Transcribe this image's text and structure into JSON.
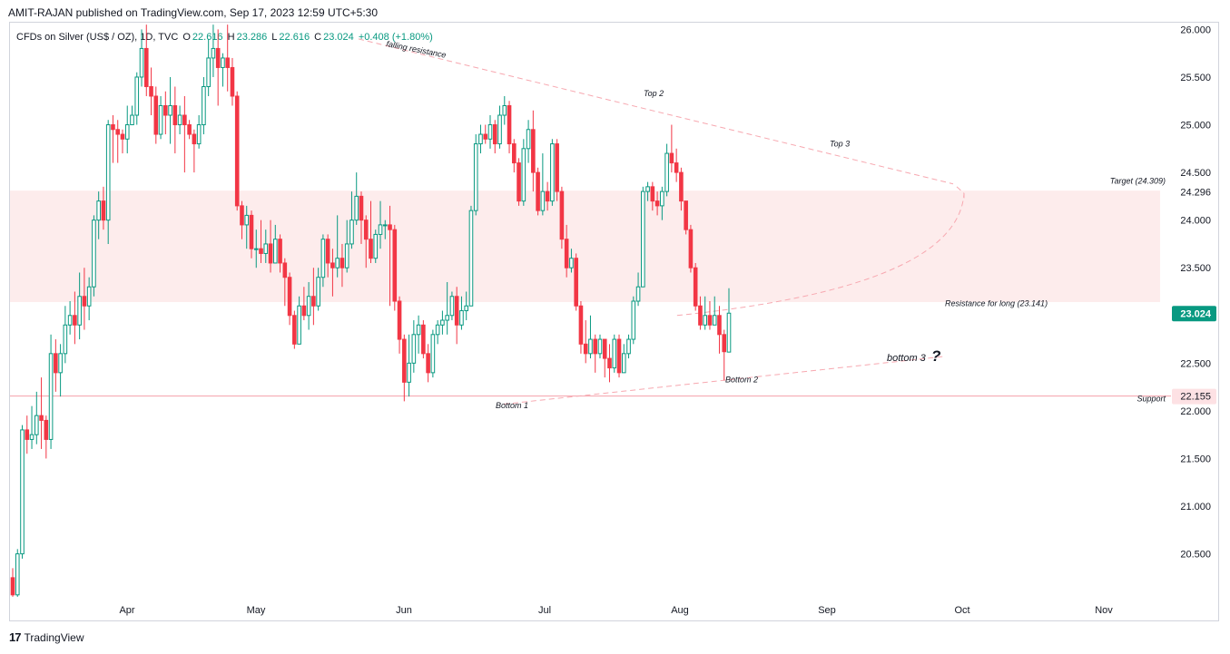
{
  "header": {
    "publisher": "AMIT-RAJAN published on TradingView.com, Sep 17, 2023 12:59 UTC+5:30"
  },
  "legend": {
    "symbol": "CFDs on Silver (US$ / OZ), 1D, TVC",
    "open_label": "O",
    "open": "22.616",
    "high_label": "H",
    "high": "23.286",
    "low_label": "L",
    "low": "22.616",
    "close_label": "C",
    "close": "23.024",
    "change": "+0.408 (+1.80%)"
  },
  "colors": {
    "up": "#089981",
    "down": "#f23645",
    "annotation": "#f7a8b0",
    "zone": "#fdecec"
  },
  "footer": {
    "brand": "TradingView",
    "logo_glyph": "17"
  },
  "chart_data": {
    "type": "candlestick",
    "symbol": "CFDs on Silver (US$ / OZ)",
    "interval": "1D",
    "ylim": [
      20.03,
      26.08
    ],
    "yticks": [
      20.5,
      21.0,
      21.5,
      22.0,
      22.5,
      23.0,
      23.5,
      24.0,
      24.5,
      25.0,
      25.5,
      26.0
    ],
    "ytick_labels": [
      "20.500",
      "21.000",
      "21.500",
      "22.000",
      "22.500",
      "23.000",
      "23.500",
      "24.000",
      "24.500",
      "25.000",
      "25.500",
      "26.000"
    ],
    "xlabels": [
      "Apr",
      "May",
      "Jun",
      "Jul",
      "Aug",
      "Sep",
      "Oct",
      "Nov"
    ],
    "price_tags": [
      {
        "value": 24.296,
        "label": "24.296",
        "style": "plain"
      },
      {
        "value": 23.024,
        "label": "23.024",
        "style": "last"
      },
      {
        "value": 22.155,
        "label": "22.155",
        "style": "support"
      }
    ],
    "zone": {
      "low": 23.141,
      "high": 24.309
    },
    "support_line": 22.155,
    "annotations": [
      {
        "text": "falling resistance",
        "at": "top-left trendline"
      },
      {
        "text": "Top 2",
        "price": 25.3
      },
      {
        "text": "Top 3",
        "price": 24.77
      },
      {
        "text": "Target (24.309)",
        "price": 24.38
      },
      {
        "text": "Resistance for long (23.141)",
        "price": 23.1
      },
      {
        "text": "bottom 3",
        "price": 22.52
      },
      {
        "text": "?",
        "price": 22.52
      },
      {
        "text": "Bottom 2",
        "price": 22.3
      },
      {
        "text": "Bottom 1",
        "price": 22.03
      },
      {
        "text": "Support",
        "price": 22.1
      }
    ],
    "candles": [
      [
        20.25,
        20.07,
        20.35,
        20.05
      ],
      [
        20.07,
        20.5,
        20.55,
        20.05
      ],
      [
        20.5,
        21.8,
        21.85,
        20.45
      ],
      [
        21.8,
        21.7,
        21.95,
        21.55
      ],
      [
        21.7,
        21.75,
        22.05,
        21.6
      ],
      [
        21.75,
        21.95,
        22.2,
        21.65
      ],
      [
        21.95,
        21.9,
        22.35,
        21.6
      ],
      [
        21.9,
        21.7,
        21.95,
        21.5
      ],
      [
        21.7,
        22.6,
        22.8,
        21.6
      ],
      [
        22.6,
        22.4,
        22.75,
        22.2
      ],
      [
        22.4,
        22.6,
        22.7,
        22.15
      ],
      [
        22.6,
        22.9,
        23.1,
        22.5
      ],
      [
        22.9,
        23.0,
        23.15,
        22.8
      ],
      [
        23.0,
        22.9,
        23.25,
        22.7
      ],
      [
        22.9,
        23.2,
        23.45,
        22.75
      ],
      [
        23.2,
        23.1,
        23.5,
        22.85
      ],
      [
        23.1,
        23.3,
        23.4,
        22.95
      ],
      [
        23.3,
        24.0,
        24.05,
        23.2
      ],
      [
        24.0,
        24.2,
        24.3,
        23.8
      ],
      [
        24.2,
        24.0,
        24.35,
        23.9
      ],
      [
        24.0,
        25.0,
        25.05,
        23.75
      ],
      [
        25.0,
        24.95,
        25.1,
        24.6
      ],
      [
        24.95,
        24.9,
        25.05,
        24.6
      ],
      [
        24.9,
        24.85,
        24.95,
        24.7
      ],
      [
        24.85,
        25.0,
        25.2,
        24.7
      ],
      [
        25.0,
        25.1,
        25.2,
        25.0
      ],
      [
        25.1,
        25.5,
        25.55,
        25.0
      ],
      [
        25.5,
        25.8,
        26.0,
        25.4
      ],
      [
        25.8,
        25.4,
        26.05,
        25.3
      ],
      [
        25.4,
        25.3,
        25.6,
        25.1
      ],
      [
        25.3,
        24.9,
        25.4,
        24.8
      ],
      [
        24.9,
        25.2,
        25.3,
        24.85
      ],
      [
        25.2,
        25.1,
        25.35,
        24.9
      ],
      [
        25.1,
        25.2,
        25.5,
        24.8
      ],
      [
        25.2,
        25.0,
        25.4,
        24.7
      ],
      [
        25.0,
        25.1,
        25.2,
        24.9
      ],
      [
        25.1,
        25.0,
        25.3,
        24.5
      ],
      [
        25.0,
        24.9,
        25.05,
        24.85
      ],
      [
        24.9,
        24.8,
        24.95,
        24.5
      ],
      [
        24.8,
        25.0,
        25.1,
        24.75
      ],
      [
        25.0,
        25.4,
        25.5,
        24.9
      ],
      [
        25.4,
        25.7,
        25.9,
        25.3
      ],
      [
        25.7,
        25.8,
        26.05,
        25.5
      ],
      [
        25.8,
        25.6,
        26.0,
        25.2
      ],
      [
        25.6,
        25.7,
        25.75,
        25.4
      ],
      [
        25.7,
        25.6,
        26.05,
        25.35
      ],
      [
        25.6,
        25.3,
        25.7,
        25.2
      ],
      [
        25.3,
        24.15,
        25.35,
        24.1
      ],
      [
        24.15,
        23.95,
        24.2,
        23.8
      ],
      [
        23.95,
        24.05,
        24.15,
        23.7
      ],
      [
        24.05,
        23.7,
        24.1,
        23.6
      ],
      [
        23.7,
        23.7,
        23.9,
        23.5
      ],
      [
        23.7,
        23.65,
        24.0,
        23.55
      ],
      [
        23.65,
        23.75,
        23.9,
        23.55
      ],
      [
        23.75,
        23.55,
        24.0,
        23.45
      ],
      [
        23.55,
        23.8,
        23.95,
        23.6
      ],
      [
        23.8,
        23.55,
        23.85,
        23.45
      ],
      [
        23.55,
        23.4,
        23.6,
        23.1
      ],
      [
        23.4,
        23.0,
        23.45,
        22.9
      ],
      [
        23.0,
        22.7,
        23.05,
        22.65
      ],
      [
        22.7,
        23.1,
        23.2,
        22.7
      ],
      [
        23.1,
        23.0,
        23.3,
        22.95
      ],
      [
        23.0,
        23.2,
        23.35,
        22.85
      ],
      [
        23.2,
        23.1,
        23.5,
        22.9
      ],
      [
        23.1,
        23.4,
        23.5,
        23.05
      ],
      [
        23.4,
        23.8,
        23.85,
        23.3
      ],
      [
        23.8,
        23.55,
        23.85,
        23.4
      ],
      [
        23.55,
        23.5,
        23.7,
        23.2
      ],
      [
        23.5,
        23.6,
        24.05,
        23.4
      ],
      [
        23.6,
        23.5,
        23.75,
        23.3
      ],
      [
        23.5,
        23.75,
        24.0,
        23.45
      ],
      [
        23.75,
        24.0,
        24.3,
        23.7
      ],
      [
        24.0,
        24.25,
        24.5,
        23.95
      ],
      [
        24.25,
        24.0,
        24.3,
        23.75
      ],
      [
        24.0,
        23.8,
        24.05,
        23.5
      ],
      [
        23.8,
        23.6,
        24.2,
        23.55
      ],
      [
        23.6,
        23.85,
        23.9,
        23.55
      ],
      [
        23.85,
        23.95,
        24.2,
        23.7
      ],
      [
        23.95,
        23.95,
        24.0,
        23.8
      ],
      [
        23.95,
        23.9,
        24.15,
        23.1
      ],
      [
        23.9,
        23.15,
        23.95,
        23.05
      ],
      [
        23.15,
        22.75,
        23.2,
        22.6
      ],
      [
        22.75,
        22.3,
        22.8,
        22.1
      ],
      [
        22.3,
        22.5,
        22.8,
        22.15
      ],
      [
        22.5,
        22.8,
        22.95,
        22.4
      ],
      [
        22.8,
        22.9,
        23.0,
        22.6
      ],
      [
        22.9,
        22.6,
        22.95,
        22.55
      ],
      [
        22.6,
        22.4,
        22.7,
        22.3
      ],
      [
        22.4,
        22.8,
        22.85,
        22.35
      ],
      [
        22.8,
        22.9,
        22.95,
        22.7
      ],
      [
        22.9,
        22.95,
        23.05,
        22.8
      ],
      [
        22.95,
        23.0,
        23.35,
        22.8
      ],
      [
        23.0,
        23.2,
        23.25,
        22.95
      ],
      [
        23.2,
        22.9,
        23.3,
        22.7
      ],
      [
        22.9,
        23.05,
        23.2,
        22.85
      ],
      [
        23.05,
        23.1,
        23.25,
        22.95
      ],
      [
        23.1,
        24.1,
        24.15,
        23.1
      ],
      [
        24.1,
        24.8,
        24.9,
        24.05
      ],
      [
        24.8,
        24.9,
        25.0,
        24.7
      ],
      [
        24.9,
        24.85,
        25.0,
        24.8
      ],
      [
        24.85,
        25.0,
        25.1,
        24.75
      ],
      [
        25.0,
        24.8,
        25.05,
        24.7
      ],
      [
        24.8,
        25.1,
        25.2,
        24.75
      ],
      [
        25.1,
        25.2,
        25.3,
        25.0
      ],
      [
        25.2,
        24.8,
        25.25,
        24.7
      ],
      [
        24.8,
        24.6,
        24.85,
        24.5
      ],
      [
        24.6,
        24.2,
        24.65,
        24.15
      ],
      [
        24.2,
        24.75,
        24.85,
        24.15
      ],
      [
        24.75,
        24.95,
        25.05,
        24.6
      ],
      [
        24.95,
        24.5,
        25.15,
        24.3
      ],
      [
        24.5,
        24.1,
        24.55,
        24.05
      ],
      [
        24.1,
        24.3,
        24.7,
        24.05
      ],
      [
        24.3,
        24.2,
        24.4,
        24.1
      ],
      [
        24.2,
        24.8,
        24.85,
        24.15
      ],
      [
        24.8,
        24.3,
        24.85,
        24.2
      ],
      [
        24.3,
        23.8,
        24.35,
        23.7
      ],
      [
        23.8,
        23.5,
        23.95,
        23.4
      ],
      [
        23.5,
        23.6,
        23.7,
        23.45
      ],
      [
        23.6,
        23.1,
        23.65,
        23.05
      ],
      [
        23.1,
        22.7,
        23.15,
        22.6
      ],
      [
        22.7,
        22.6,
        22.95,
        22.5
      ],
      [
        22.6,
        22.75,
        23.0,
        22.55
      ],
      [
        22.75,
        22.6,
        22.8,
        22.4
      ],
      [
        22.6,
        22.75,
        22.8,
        22.55
      ],
      [
        22.75,
        22.55,
        22.75,
        22.35
      ],
      [
        22.55,
        22.45,
        22.7,
        22.3
      ],
      [
        22.45,
        22.75,
        22.8,
        22.4
      ],
      [
        22.75,
        22.4,
        22.8,
        22.35
      ],
      [
        22.4,
        22.6,
        22.7,
        22.4
      ],
      [
        22.6,
        22.75,
        22.8,
        22.55
      ],
      [
        22.75,
        23.15,
        23.2,
        22.7
      ],
      [
        23.15,
        23.3,
        23.45,
        23.1
      ],
      [
        23.3,
        24.3,
        24.35,
        23.3
      ],
      [
        24.3,
        24.35,
        24.4,
        24.2
      ],
      [
        24.35,
        24.2,
        24.4,
        24.1
      ],
      [
        24.2,
        24.15,
        24.3,
        24.05
      ],
      [
        24.15,
        24.3,
        24.35,
        24.0
      ],
      [
        24.3,
        24.7,
        24.8,
        24.25
      ],
      [
        24.7,
        24.6,
        25.0,
        24.5
      ],
      [
        24.6,
        24.5,
        24.75,
        24.4
      ],
      [
        24.5,
        24.2,
        24.55,
        24.1
      ],
      [
        24.2,
        23.9,
        24.2,
        23.85
      ],
      [
        23.9,
        23.5,
        23.95,
        23.45
      ],
      [
        23.5,
        23.1,
        23.55,
        23.05
      ],
      [
        23.1,
        22.9,
        23.2,
        22.85
      ],
      [
        22.9,
        23.0,
        23.2,
        22.85
      ],
      [
        23.0,
        22.9,
        23.15,
        22.85
      ],
      [
        22.9,
        23.0,
        23.2,
        22.9
      ],
      [
        23.0,
        22.8,
        23.1,
        22.6
      ],
      [
        22.8,
        22.62,
        22.85,
        22.32
      ],
      [
        22.616,
        23.024,
        23.286,
        22.616
      ]
    ]
  }
}
